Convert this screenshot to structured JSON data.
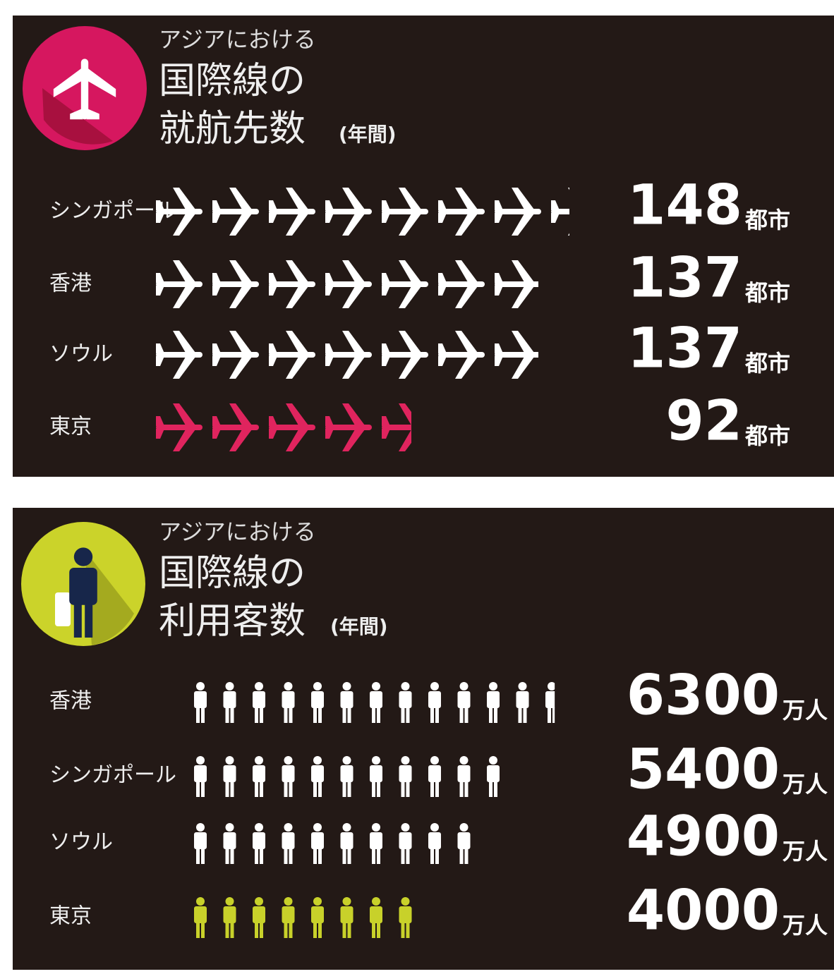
{
  "chart_data": [
    {
      "type": "pictograph",
      "subtitle": "アジアにおける",
      "title_lines": [
        "国際線の",
        "就航先数"
      ],
      "note": "(年間)",
      "categories": [
        "シンガポール",
        "香港",
        "ソウル",
        "東京"
      ],
      "values": [
        148,
        137,
        137,
        92
      ],
      "unit": "都市",
      "colors": [
        "#ffffff",
        "#ffffff",
        "#ffffff",
        "#e0245e"
      ]
    },
    {
      "type": "pictograph-people",
      "subtitle": "アジアにおける",
      "title_lines": [
        "国際線の",
        "利用客数"
      ],
      "note": "(年間)",
      "categories": [
        "香港",
        "シンガポール",
        "ソウル",
        "東京"
      ],
      "values": [
        6300,
        5400,
        4900,
        4000
      ],
      "unit": "万人",
      "colors": [
        "#ffffff",
        "#ffffff",
        "#ffffff",
        "#c8d12a"
      ]
    }
  ]
}
